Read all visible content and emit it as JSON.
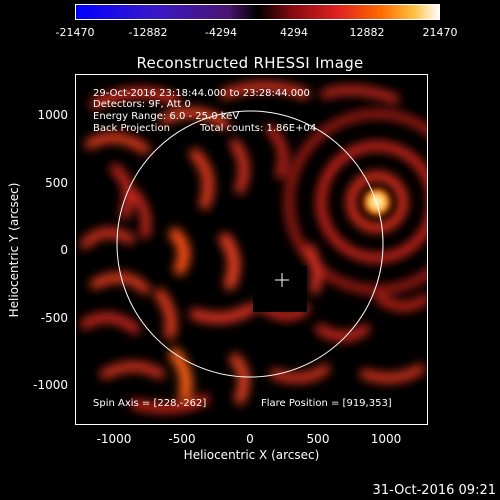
{
  "colorbar": {
    "ticks": [
      "-21470",
      "-12882",
      "-4294",
      "4294",
      "12882",
      "21470"
    ],
    "colors": [
      "#0000ff",
      "#3a18c8",
      "#6a2098",
      "#a02050",
      "#d8202a",
      "#ff5a00",
      "#ffa000",
      "#ffe060",
      "#ffffff"
    ]
  },
  "title": "Reconstructed RHESSI Image",
  "info": {
    "time_range": "29-Oct-2016 23:18:44.000 to 23:28:44.000",
    "detectors": "Detectors: 9F, Att 0",
    "energy": "Energy Range: 6.0 - 25.0 keV",
    "method": "Back Projection",
    "counts": "Total counts: 1.86E+04",
    "spin_axis": "Spin Axis = [228,-262]",
    "flare_position": "Flare Position = [919,353]"
  },
  "axes": {
    "xlabel": "Heliocentric X (arcsec)",
    "ylabel": "Heliocentric Y (arcsec)",
    "xticks": [
      "-1000",
      "-500",
      "0",
      "500",
      "1000"
    ],
    "yticks": [
      "1000",
      "500",
      "0",
      "-500",
      "-1000"
    ]
  },
  "timestamp": "31-Oct-2016 09:21"
}
